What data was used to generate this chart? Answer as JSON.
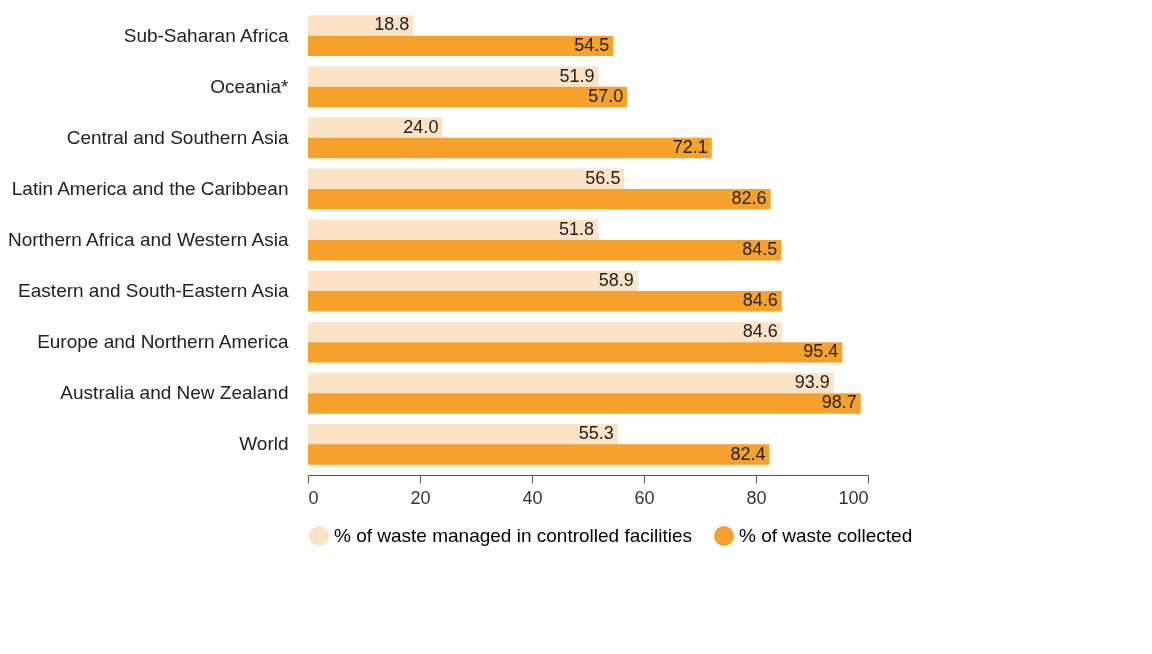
{
  "chart_data": {
    "type": "bar",
    "orientation": "horizontal",
    "categories": [
      "Sub-Saharan Africa",
      "Oceania*",
      "Central and Southern Asia",
      "Latin America and the Caribbean",
      "Northern Africa and Western Asia",
      "Eastern and South-Eastern Asia",
      "Europe and Northern America",
      "Australia and New Zealand",
      "World"
    ],
    "series": [
      {
        "name": "% of waste managed in controlled facilities",
        "color": "#fde3c6",
        "values": [
          18.8,
          51.9,
          24.0,
          56.5,
          51.8,
          58.9,
          84.6,
          93.9,
          55.3
        ],
        "value_labels": [
          "18.8",
          "51.9",
          "24.0",
          "56.5",
          "51.8",
          "58.9",
          "84.6",
          "93.9",
          "55.3"
        ]
      },
      {
        "name": "% of waste collected",
        "color": "#f6a12c",
        "values": [
          54.5,
          57.0,
          72.1,
          82.6,
          84.5,
          84.6,
          95.4,
          98.7,
          82.4
        ],
        "value_labels": [
          "54.5",
          "57.0",
          "72.1",
          "82.6",
          "84.5",
          "84.6",
          "95.4",
          "98.7",
          "82.4"
        ]
      }
    ],
    "xlim": [
      0,
      100
    ],
    "xticks": [
      0,
      20,
      40,
      60,
      80,
      100
    ],
    "legend": "bottom",
    "grid": false
  }
}
